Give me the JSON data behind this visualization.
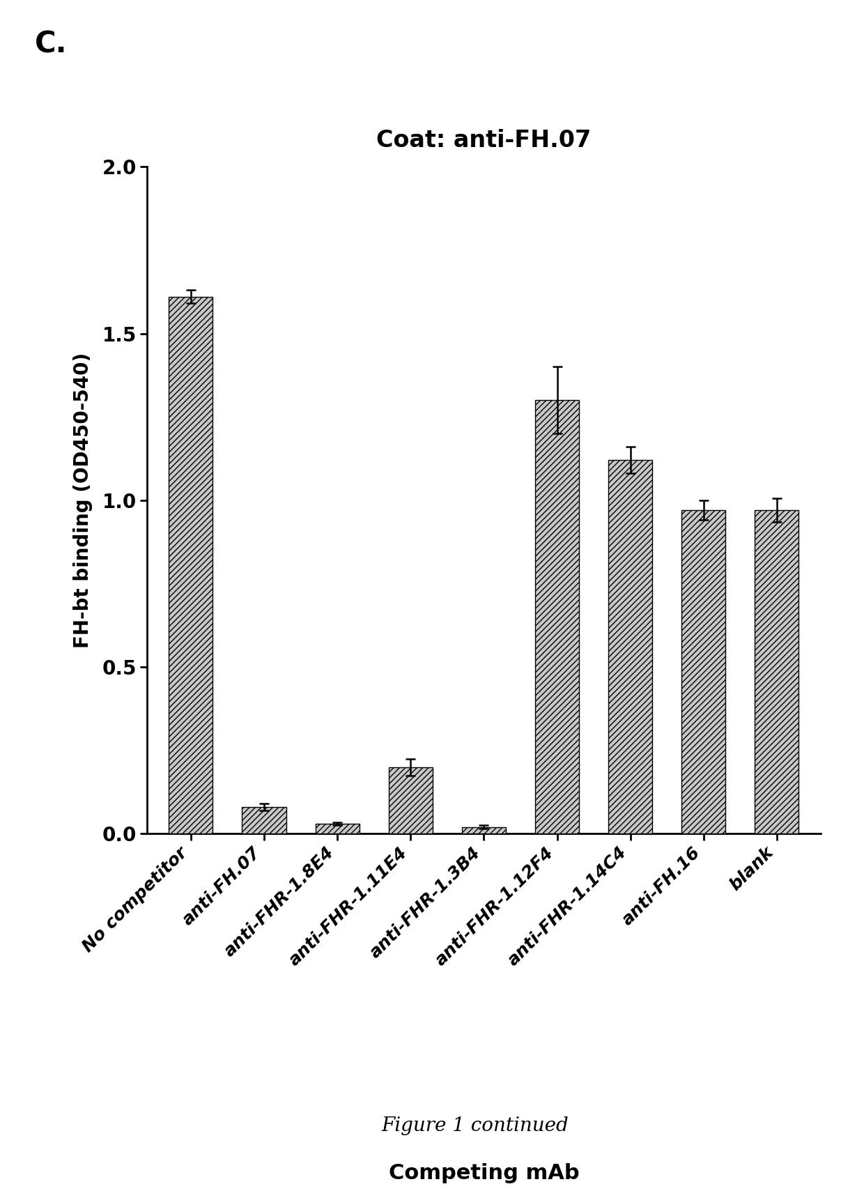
{
  "title": "Coat: anti-FH.07",
  "panel_label": "C.",
  "xlabel": "Competing mAb",
  "ylabel": "FH-bt binding (OD450-540)",
  "categories": [
    "No competitor",
    "anti-FH.07",
    "anti-FHR-1.8E4",
    "anti-FHR-1.11E4",
    "anti-FHR-1.3B4",
    "anti-FHR-1.12F4",
    "anti-FHR-1.14C4",
    "anti-FH.16",
    "blank"
  ],
  "values": [
    1.61,
    0.08,
    0.03,
    0.2,
    0.02,
    1.3,
    1.12,
    0.97,
    0.97
  ],
  "errors": [
    0.02,
    0.01,
    0.005,
    0.025,
    0.005,
    0.1,
    0.04,
    0.03,
    0.035
  ],
  "ylim": [
    0,
    2.0
  ],
  "yticks": [
    0.0,
    0.5,
    1.0,
    1.5,
    2.0
  ],
  "bar_color": "#c8c8c8",
  "hatch": "////",
  "figure_note": "Figure 1 continued",
  "background_color": "#ffffff"
}
